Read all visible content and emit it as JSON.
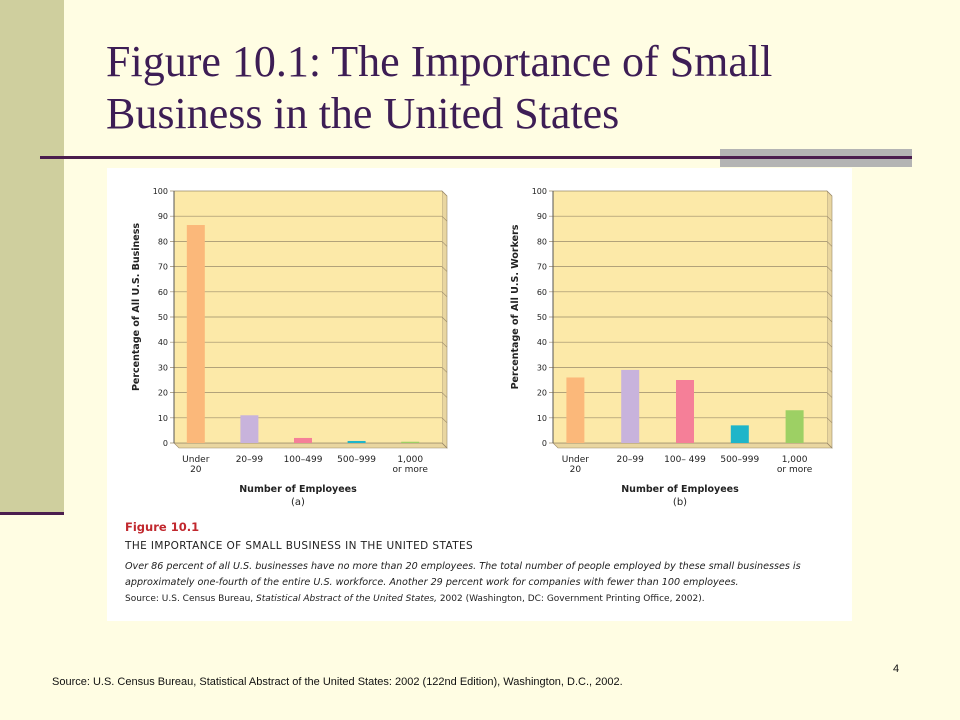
{
  "slide": {
    "title_line1": "Figure 10.1: The Importance of Small",
    "title_line2": "Business in the United States",
    "source": "Source: U.S. Census Bureau, Statistical Abstract of the United States: 2002 (122nd Edition), Washington, D.C., 2002.",
    "page_number": "4"
  },
  "caption": {
    "label": "Figure 10.1",
    "heading": "THE IMPORTANCE OF SMALL BUSINESS IN THE UNITED STATES",
    "body": "Over 86 percent of all U.S. businesses have no more than 20 employees. The total number of people employed by these small businesses is approximately one-fourth of the entire U.S. workforce. Another 29 percent work for companies with fewer than 100 employees.",
    "source_prefix": "Source: U.S. Census Bureau, ",
    "source_title": "Statistical Abstract of the United States,",
    "source_suffix": " 2002 (Washington, DC: Government Printing Office, 2002)."
  },
  "colors": {
    "plot_background": "#fce9a8",
    "grid": "#9a8a6a",
    "bars": [
      "#fbb87a",
      "#c8b3dc",
      "#f57f98",
      "#1fb5c9",
      "#9dd064"
    ]
  },
  "chart_data": [
    {
      "type": "bar",
      "categories": [
        [
          "Under",
          "20"
        ],
        [
          "20–99"
        ],
        [
          "100–499"
        ],
        [
          "500–999"
        ],
        [
          "1,000",
          "or more"
        ]
      ],
      "values": [
        86.5,
        11,
        2,
        0.8,
        0.5
      ],
      "ylabel": "Percentage of All U.S. Business",
      "xlabel": "Number of Employees",
      "sublabel": "(a)",
      "ylim": [
        0,
        100
      ],
      "yticks": [
        0,
        10,
        20,
        30,
        40,
        50,
        60,
        70,
        80,
        90,
        100
      ],
      "grid": true
    },
    {
      "type": "bar",
      "categories": [
        [
          "Under",
          "20"
        ],
        [
          "20–99"
        ],
        [
          "100– 499"
        ],
        [
          "500–999"
        ],
        [
          "1,000",
          "or more"
        ]
      ],
      "values": [
        26,
        29,
        25,
        7,
        13
      ],
      "ylabel": "Percentage of All U.S. Workers",
      "xlabel": "Number of Employees",
      "sublabel": "(b)",
      "ylim": [
        0,
        100
      ],
      "yticks": [
        0,
        10,
        20,
        30,
        40,
        50,
        60,
        70,
        80,
        90,
        100
      ],
      "grid": true
    }
  ]
}
